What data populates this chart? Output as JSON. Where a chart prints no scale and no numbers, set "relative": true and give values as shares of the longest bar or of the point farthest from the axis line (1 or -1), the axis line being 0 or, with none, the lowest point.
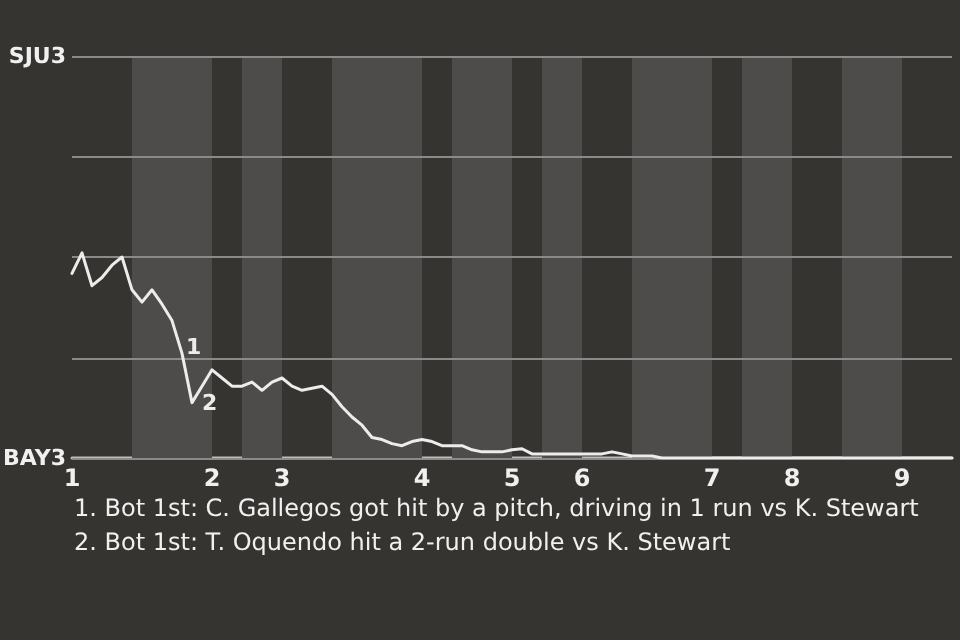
{
  "chart_data": {
    "type": "line",
    "relative": true,
    "categories": [
      "1",
      null,
      null,
      null,
      null,
      null,
      null,
      null,
      null,
      null,
      null,
      null,
      null,
      null,
      "2",
      null,
      null,
      null,
      null,
      null,
      null,
      "3",
      null,
      null,
      null,
      null,
      null,
      null,
      null,
      null,
      null,
      null,
      null,
      null,
      null,
      "4",
      null,
      null,
      null,
      null,
      null,
      null,
      null,
      null,
      "5",
      null,
      null,
      null,
      null,
      null,
      null,
      "6",
      null,
      null,
      null,
      null,
      null,
      null,
      null,
      null,
      null,
      null,
      null,
      null,
      "7",
      null,
      null,
      null,
      null,
      null,
      null,
      null,
      "8",
      null,
      null,
      null,
      null,
      null,
      null,
      null,
      null,
      null,
      null,
      "9",
      null,
      null,
      null,
      null,
      null
    ],
    "series": [
      {
        "color": "#ececec",
        "values": [
          0.9,
          1,
          0.84,
          0.88,
          0.94,
          0.98,
          0.82,
          0.76,
          0.82,
          0.75,
          0.67,
          0.51,
          0.27,
          0.35,
          0.43,
          0.39,
          0.35,
          0.35,
          0.37,
          0.33,
          0.37,
          0.39,
          0.35,
          0.33,
          0.34,
          0.35,
          0.31,
          0.25,
          0.2,
          0.16,
          0.1,
          0.09,
          0.07,
          0.06,
          0.08,
          0.09,
          0.08,
          0.06,
          0.06,
          0.06,
          0.04,
          0.03,
          0.03,
          0.03,
          0.04,
          0.045,
          0.02,
          0.02,
          0.02,
          0.02,
          0.02,
          0.02,
          0.02,
          0.02,
          0.03,
          0.02,
          0.01,
          0.01,
          0.01,
          0,
          0,
          0,
          0,
          0,
          0,
          0,
          0,
          0,
          0,
          0,
          0,
          0,
          0,
          0,
          0,
          0,
          0,
          0,
          0,
          0,
          0,
          0,
          0,
          0,
          0,
          0,
          0,
          0,
          0
        ]
      }
    ],
    "marker": "none",
    "line_style": "solid",
    "ref_lines": [
      {
        "axis": "y",
        "value": 0,
        "label": "BAY3",
        "color": "#8a8a8a"
      },
      {
        "axis": "y",
        "value": 0.49,
        "label": null,
        "color": "#8a8a8a"
      },
      {
        "axis": "y",
        "value": 0.98,
        "label": null,
        "color": "#8a8a8a"
      },
      {
        "axis": "y",
        "value": 1.47,
        "label": null,
        "color": "#8a8a8a"
      },
      {
        "axis": "y",
        "value": 1.96,
        "label": "SJU3",
        "color": "#8a8a8a"
      }
    ],
    "annotations": [
      "1",
      "2",
      "1. Bot 1st: C. Gallegos got hit by a pitch, driving in 1 run vs K. Stewart",
      "2. Bot 1st: T. Oquendo hit a 2-run double vs K. Stewart"
    ]
  }
}
